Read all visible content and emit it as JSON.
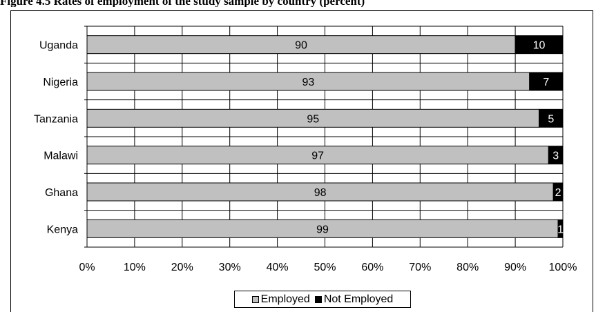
{
  "page": {
    "title": "Figure 4.5 Rates of employment of the study sample by country (percent)"
  },
  "colors": {
    "employed": "#c0c0c0",
    "not_employed": "#000000",
    "employed_text": "#000000",
    "not_employed_text": "#ffffff"
  },
  "chart_data": {
    "type": "bar",
    "orientation": "horizontal",
    "stacked": "100%",
    "title": "",
    "xlabel": "",
    "ylabel": "",
    "categories": [
      "Uganda",
      "Nigeria",
      "Tanzania",
      "Malawi",
      "Ghana",
      "Kenya"
    ],
    "series": [
      {
        "name": "Employed",
        "values": [
          90,
          93,
          95,
          97,
          98,
          99
        ]
      },
      {
        "name": "Not Employed",
        "values": [
          10,
          7,
          5,
          3,
          2,
          1
        ]
      }
    ],
    "xlim": [
      0,
      100
    ],
    "x_ticks": [
      "0%",
      "10%",
      "20%",
      "30%",
      "40%",
      "50%",
      "60%",
      "70%",
      "80%",
      "90%",
      "100%"
    ],
    "grid": true,
    "legend_position": "bottom"
  }
}
